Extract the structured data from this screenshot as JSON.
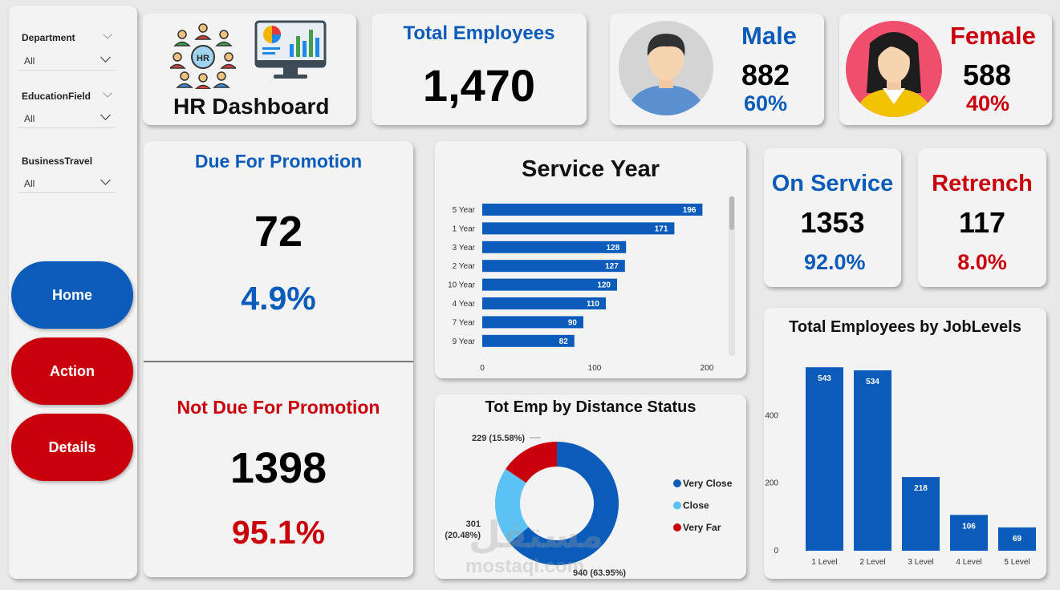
{
  "filters": [
    {
      "label": "Department",
      "value": "All"
    },
    {
      "label": "EducationField",
      "value": "All"
    },
    {
      "label": "BusinessTravel",
      "value": "All"
    }
  ],
  "nav": {
    "home": "Home",
    "action": "Action",
    "details": "Details",
    "home_color": "#0b5cba",
    "action_color": "#c9000c"
  },
  "logo": {
    "title": "HR Dashboard",
    "badge": "HR"
  },
  "total": {
    "title": "Total Employees",
    "value": "1,470"
  },
  "male": {
    "title": "Male",
    "count": "882",
    "pct": "60%"
  },
  "female": {
    "title": "Female",
    "count": "588",
    "pct": "40%"
  },
  "due": {
    "title": "Due For Promotion",
    "count": "72",
    "pct": "4.9%"
  },
  "not_due": {
    "title": "Not Due For Promotion",
    "count": "1398",
    "pct": "95.1%"
  },
  "on_service": {
    "title": "On Service",
    "count": "1353",
    "pct": "92.0%"
  },
  "retrench": {
    "title": "Retrench",
    "count": "117",
    "pct": "8.0%"
  },
  "watermark": {
    "arabic": "مستقل",
    "url": "mostaql.com"
  },
  "chart_data": [
    {
      "type": "bar",
      "orientation": "horizontal",
      "title": "Service Year",
      "categories": [
        "5 Year",
        "1 Year",
        "3 Year",
        "2 Year",
        "10 Year",
        "4 Year",
        "7 Year",
        "9 Year"
      ],
      "values": [
        196,
        171,
        128,
        127,
        120,
        110,
        90,
        82
      ],
      "xlim": [
        0,
        200
      ],
      "xticks": [
        0,
        100,
        200
      ],
      "color": "#0b5cba"
    },
    {
      "type": "pie",
      "title": "Tot Emp by Distance Status",
      "labels": [
        "Very Close",
        "Close",
        "Very Far"
      ],
      "values": [
        940,
        301,
        229
      ],
      "data_labels": [
        "940 (63.95%)",
        "301 (20.48%)",
        "229 (15.58%)"
      ],
      "colors": [
        "#0b5cba",
        "#5bc2f3",
        "#c9000c"
      ],
      "legend": "right"
    },
    {
      "type": "bar",
      "title": "Total Employees by JobLevels",
      "categories": [
        "1 Level",
        "2 Level",
        "3 Level",
        "4 Level",
        "5 Level"
      ],
      "values": [
        543,
        534,
        218,
        106,
        69
      ],
      "ylim": [
        0,
        560
      ],
      "yticks": [
        0,
        200,
        400
      ],
      "color": "#0b5cba"
    }
  ]
}
